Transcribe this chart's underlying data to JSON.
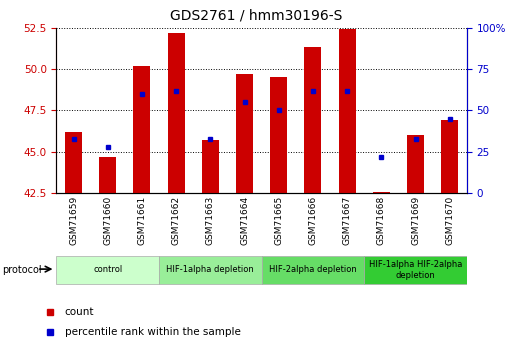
{
  "title": "GDS2761 / hmm30196-S",
  "samples": [
    "GSM71659",
    "GSM71660",
    "GSM71661",
    "GSM71662",
    "GSM71663",
    "GSM71664",
    "GSM71665",
    "GSM71666",
    "GSM71667",
    "GSM71668",
    "GSM71669",
    "GSM71670"
  ],
  "bar_values": [
    46.2,
    44.7,
    50.2,
    52.2,
    45.7,
    49.7,
    49.5,
    51.3,
    52.4,
    42.6,
    46.0,
    46.9
  ],
  "blue_values_pct": [
    33,
    28,
    60,
    62,
    33,
    55,
    50,
    62,
    62,
    22,
    33,
    45
  ],
  "bar_bottom": 42.5,
  "ylim_left": [
    42.5,
    52.5
  ],
  "ylim_right": [
    0,
    100
  ],
  "yticks_left": [
    42.5,
    45.0,
    47.5,
    50.0,
    52.5
  ],
  "yticks_right": [
    0,
    25,
    50,
    75,
    100
  ],
  "ytick_labels_right": [
    "0",
    "25",
    "50",
    "75",
    "100%"
  ],
  "bar_color": "#cc0000",
  "blue_color": "#0000cc",
  "groups": [
    {
      "label": "control",
      "indices": [
        0,
        1,
        2
      ],
      "color": "#ccffcc"
    },
    {
      "label": "HIF-1alpha depletion",
      "indices": [
        3,
        4,
        5
      ],
      "color": "#99ee99"
    },
    {
      "label": "HIF-2alpha depletion",
      "indices": [
        6,
        7,
        8
      ],
      "color": "#66dd66"
    },
    {
      "label": "HIF-1alpha HIF-2alpha\ndepletion",
      "indices": [
        9,
        10,
        11
      ],
      "color": "#33cc33"
    }
  ],
  "bg_color": "#ffffff",
  "tick_label_color_left": "#cc0000",
  "tick_label_color_right": "#0000cc",
  "bar_width": 0.5,
  "legend_items": [
    {
      "label": "count",
      "color": "#cc0000"
    },
    {
      "label": "percentile rank within the sample",
      "color": "#0000cc"
    }
  ]
}
